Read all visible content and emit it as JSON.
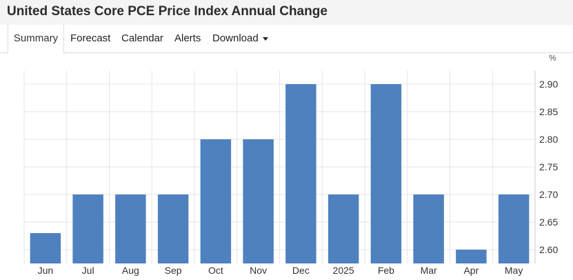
{
  "header": {
    "title": "United States Core PCE Price Index Annual Change"
  },
  "tabs": {
    "summary": "Summary",
    "forecast": "Forecast",
    "calendar": "Calendar",
    "alerts": "Alerts",
    "download": "Download",
    "active": "Summary"
  },
  "chart_data": {
    "type": "bar",
    "categories": [
      "Jun",
      "Jul",
      "Aug",
      "Sep",
      "Oct",
      "Nov",
      "Dec",
      "2025",
      "Feb",
      "Mar",
      "Apr",
      "May"
    ],
    "values": [
      2.63,
      2.7,
      2.7,
      2.7,
      2.8,
      2.8,
      2.9,
      2.7,
      2.9,
      2.7,
      2.6,
      2.7
    ],
    "title": "",
    "xlabel": "",
    "ylabel": "%",
    "ylim": [
      2.575,
      2.925
    ],
    "yticks": [
      "2.60",
      "2.65",
      "2.70",
      "2.75",
      "2.80",
      "2.85",
      "2.90"
    ],
    "y_axis_position": "right",
    "grid": true,
    "bar_color": "#4e81be",
    "grid_color": "#e6e6e6"
  }
}
